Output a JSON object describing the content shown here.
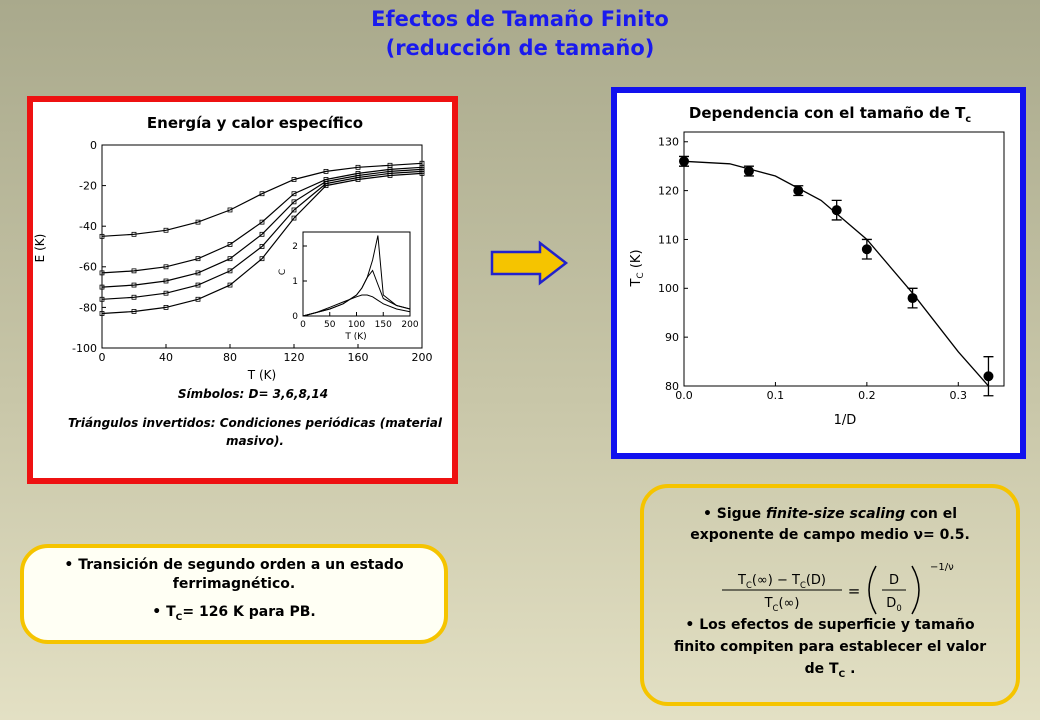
{
  "header": {
    "title_line1": "Efectos de Tamaño Finito",
    "title_line2": "(reducción de tamaño)"
  },
  "chart_data": [
    {
      "type": "line",
      "title": "Energía y calor específico",
      "xlabel": "T (K)",
      "ylabel": "E (K)",
      "x": [
        0,
        20,
        40,
        60,
        80,
        100,
        120,
        140,
        160,
        180,
        200
      ],
      "xlim": [
        0,
        200
      ],
      "ylim": [
        -100,
        0
      ],
      "xticks": [
        0,
        40,
        80,
        120,
        160,
        200
      ],
      "yticks": [
        0,
        -20,
        -40,
        -60,
        -80,
        -100
      ],
      "series": [
        {
          "color": "#000000",
          "values": [
            -45,
            -44,
            -42,
            -38,
            -32,
            -24,
            -17,
            -13,
            -11,
            -10,
            -9
          ]
        },
        {
          "color": "#000000",
          "values": [
            -63,
            -62,
            -60,
            -56,
            -49,
            -38,
            -24,
            -17,
            -14,
            -12,
            -11
          ]
        },
        {
          "color": "#000000",
          "values": [
            -70,
            -69,
            -67,
            -63,
            -56,
            -44,
            -28,
            -18,
            -15,
            -13,
            -12
          ]
        },
        {
          "color": "#000000",
          "values": [
            -76,
            -75,
            -73,
            -69,
            -62,
            -50,
            -32,
            -19,
            -16,
            -14,
            -13
          ]
        },
        {
          "color": "#000000",
          "values": [
            -83,
            -82,
            -80,
            -76,
            -69,
            -56,
            -36,
            -20,
            -17,
            -15,
            -14
          ]
        }
      ],
      "caption1": "Símbolos: D= 3,6,8,14",
      "caption2": "Triángulos invertidos: Condiciones periódicas (material masivo)."
    },
    {
      "type": "line",
      "xlabel": "T (K)",
      "ylabel": "C",
      "x": [
        0,
        25,
        50,
        75,
        100,
        110,
        120,
        130,
        140,
        150,
        175,
        200
      ],
      "xlim": [
        0,
        200
      ],
      "ylim": [
        0,
        2.4
      ],
      "xticks": [
        0,
        50,
        100,
        150,
        200
      ],
      "yticks": [
        0,
        1,
        2
      ],
      "series": [
        {
          "color": "#000000",
          "values": [
            0,
            0.1,
            0.25,
            0.4,
            0.55,
            0.6,
            0.6,
            0.55,
            0.45,
            0.35,
            0.2,
            0.12
          ]
        },
        {
          "color": "#000000",
          "values": [
            0,
            0.1,
            0.2,
            0.35,
            0.6,
            0.8,
            1.1,
            1.3,
            0.9,
            0.5,
            0.3,
            0.2
          ]
        },
        {
          "color": "#000000",
          "values": [
            0,
            0.1,
            0.2,
            0.35,
            0.6,
            0.8,
            1.1,
            1.6,
            2.3,
            0.6,
            0.3,
            0.2
          ]
        }
      ]
    },
    {
      "type": "scatter",
      "title": "Dependencia con el tamaño de T",
      "title_sub": "c",
      "xlabel": "1/D",
      "ylabel": "T",
      "ylabel_sub": "C",
      "ylabel_unit": " (K)",
      "xlim": [
        0,
        0.35
      ],
      "ylim": [
        80,
        132
      ],
      "xticks": [
        {
          "value": 0,
          "label": "0.0"
        },
        0.1,
        0.2,
        0.3
      ],
      "yticks": [
        80,
        90,
        100,
        110,
        120,
        130
      ],
      "series": [
        {
          "color": "#000000",
          "marker": true,
          "x": [
            0,
            0.071,
            0.125,
            0.167,
            0.2,
            0.25,
            0.333
          ],
          "values": [
            126,
            124,
            120,
            116,
            108,
            98,
            82
          ],
          "errors": [
            1,
            1,
            1,
            2,
            2,
            2,
            4
          ]
        },
        {
          "color": "#000000",
          "marker": false,
          "x": [
            0,
            0.05,
            0.1,
            0.15,
            0.2,
            0.25,
            0.3,
            0.333
          ],
          "values": [
            126,
            125.5,
            123,
            118,
            110,
            99,
            87,
            80
          ]
        }
      ]
    }
  ],
  "box_left": {
    "bullet1": "Transición de segundo orden a un estado ferrimagnético.",
    "bullet2": [
      "T",
      "C",
      "= 126 K para PB."
    ]
  },
  "box_right": {
    "bullet1": [
      "Sigue ",
      "finite-size scaling",
      " con el exponente de campo medio ν= 0.5."
    ],
    "formula": {
      "numerator": [
        "T",
        "C",
        "(∞) − T",
        "C",
        "(D)"
      ],
      "denominator": [
        "T",
        "C",
        "(∞)"
      ],
      "equals": "=",
      "frac_num": "D",
      "frac_den": [
        "D",
        "0"
      ],
      "exponent": "−1/ν"
    },
    "bullet2": [
      "Los efectos de superficie y tamaño finito compiten para establecer el valor de T",
      "C",
      " ."
    ]
  }
}
